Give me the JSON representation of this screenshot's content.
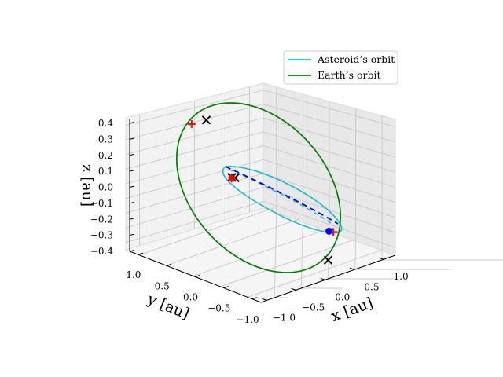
{
  "chart_data": {
    "type": "line3d",
    "title": "",
    "xlabel": "x [au]",
    "ylabel": "y [au]",
    "zlabel": "z [au]",
    "xlim": [
      -1.25,
      1.25
    ],
    "ylim": [
      -1.25,
      1.25
    ],
    "zlim": [
      -0.42,
      0.42
    ],
    "x_ticks": [
      "−1.0",
      "−0.5",
      "0.0",
      "0.5",
      "1.0"
    ],
    "y_ticks": [
      "1.0",
      "0.5",
      "0.0",
      "−0.5",
      "−1.0"
    ],
    "z_ticks": [
      "0.4",
      "0.3",
      "0.2",
      "0.1",
      "0.0",
      "−0.1",
      "−0.2",
      "−0.3",
      "−0.4"
    ],
    "grid": true,
    "legend": {
      "position": "upper-right",
      "entries": [
        {
          "label": "Asteroid’s orbit",
          "color": "#17becf"
        },
        {
          "label": "Earth’s orbit",
          "color": "#008000"
        }
      ]
    },
    "series": [
      {
        "name": "Asteroid’s orbit",
        "color": "#17becf",
        "style": "solid",
        "a": 0.72,
        "e": 0.62,
        "inclination_deg": 20
      },
      {
        "name": "Earth’s orbit",
        "color": "#008000",
        "style": "solid",
        "a": 1.0,
        "e": 0.0167,
        "inclination_deg": 20
      }
    ],
    "transfer_path": {
      "color": "#0000ff",
      "style": "dashed"
    },
    "markers": [
      {
        "symbol": "x",
        "color": "#000000",
        "x": -0.05,
        "y": 0.93,
        "z": 0.35
      },
      {
        "symbol": "x",
        "color": "#000000",
        "x": 0.3,
        "y": -0.94,
        "z": -0.34
      },
      {
        "symbol": "x",
        "color": "#000000",
        "x": -0.3,
        "y": 0.22,
        "z": 0.11
      },
      {
        "symbol": "x",
        "color": "#000000",
        "x": -0.28,
        "y": 0.18,
        "z": 0.11
      },
      {
        "symbol": "+",
        "color": "#ff0000",
        "x": -0.25,
        "y": 1.0,
        "z": 0.34
      },
      {
        "symbol": "+",
        "color": "#ff0000",
        "x": 0.66,
        "y": -0.68,
        "z": -0.24
      },
      {
        "symbol": "o",
        "color": "#ff0000",
        "x": -0.32,
        "y": 0.2,
        "z": 0.11
      },
      {
        "symbol": "o",
        "color": "#0000ff",
        "x": 0.6,
        "y": -0.66,
        "z": -0.23
      }
    ]
  }
}
